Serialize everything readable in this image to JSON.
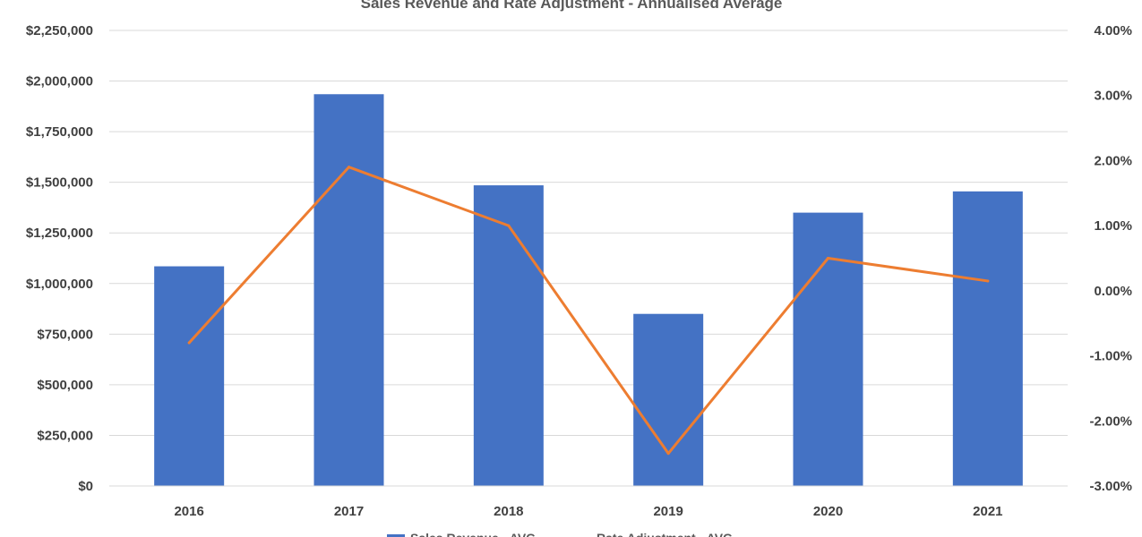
{
  "chart_data": {
    "type": "bar",
    "title": "Sales Revenue and Rate Adjustment - Annualised Average",
    "categories": [
      "2016",
      "2017",
      "2018",
      "2019",
      "2020",
      "2021"
    ],
    "series": [
      {
        "name": "Sales Revenue - AVG",
        "type": "bar",
        "axis": "left",
        "values": [
          1085000,
          1935000,
          1485000,
          850000,
          1350000,
          1455000
        ],
        "color": "#4472c4"
      },
      {
        "name": "Rate Adjustment - AVG",
        "type": "line",
        "axis": "right",
        "values": [
          -0.8,
          1.9,
          1.0,
          -2.5,
          0.5,
          0.15
        ],
        "color": "#ed7d31"
      }
    ],
    "y_left": {
      "lim": [
        0,
        2250000
      ],
      "ticks": [
        0,
        250000,
        500000,
        750000,
        1000000,
        1250000,
        1500000,
        1750000,
        2000000,
        2250000
      ],
      "tick_labels": [
        "$0",
        "$250,000",
        "$500,000",
        "$750,000",
        "$1,000,000",
        "$1,250,000",
        "$1,500,000",
        "$1,750,000",
        "$2,000,000",
        "$2,250,000"
      ]
    },
    "y_right": {
      "lim": [
        -3,
        4
      ],
      "ticks": [
        -3,
        -2,
        -1,
        0,
        1,
        2,
        3,
        4
      ],
      "tick_labels": [
        "-3.00%",
        "-2.00%",
        "-1.00%",
        "0.00%",
        "1.00%",
        "2.00%",
        "3.00%",
        "4.00%"
      ]
    },
    "grid": true,
    "legend": "bottom"
  }
}
